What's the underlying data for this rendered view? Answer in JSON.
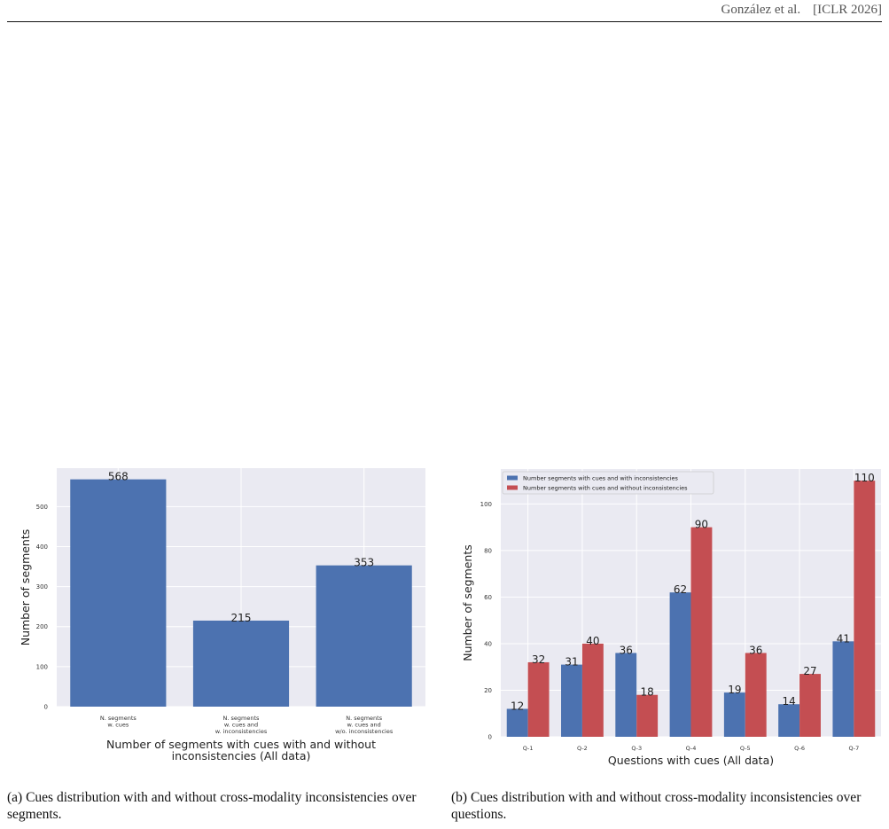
{
  "header": {
    "authors": "González et al.",
    "venue": "[ICLR 2026]"
  },
  "captions": {
    "a": "(a) Cues distribution with and without cross-modality inconsistencies over segments.",
    "b": "(b) Cues distribution with and without cross-modality inconsistencies over questions."
  },
  "colors": {
    "plot_bg": "#eaeaf2",
    "grid": "#ffffff",
    "blue": "#4c72b0",
    "red": "#c44e52"
  },
  "chart_data": [
    {
      "type": "bar",
      "categories": [
        [
          "N. segments",
          "w. cues"
        ],
        [
          "N. segments",
          "w. cues and",
          "w. inconsistencies"
        ],
        [
          "N. segments",
          "w. cues and",
          "w/o. inconsistencies"
        ]
      ],
      "values": [
        568,
        215,
        353
      ],
      "title": "",
      "xlabel": [
        "Number of segments with cues with and without",
        "inconsistencies (All data)"
      ],
      "ylabel": "Number of segments",
      "ylim": [
        0,
        596
      ],
      "yticks": [
        0,
        100,
        200,
        300,
        400,
        500
      ],
      "grid": true,
      "legend": null
    },
    {
      "type": "bar",
      "categories": [
        "Q-1",
        "Q-2",
        "Q-3",
        "Q-4",
        "Q-5",
        "Q-6",
        "Q-7"
      ],
      "series": [
        {
          "name": "Number segments with cues and with inconsistencies",
          "values": [
            12,
            31,
            36,
            62,
            19,
            14,
            41
          ]
        },
        {
          "name": "Number segments with cues and without inconsistencies",
          "values": [
            32,
            40,
            18,
            90,
            36,
            27,
            110
          ]
        }
      ],
      "title": "",
      "xlabel": "Questions with cues (All data)",
      "ylabel": "Number of segments",
      "ylim": [
        0,
        115
      ],
      "yticks": [
        0,
        20,
        40,
        60,
        80,
        100
      ],
      "grid": true,
      "legend": "top-left"
    }
  ]
}
